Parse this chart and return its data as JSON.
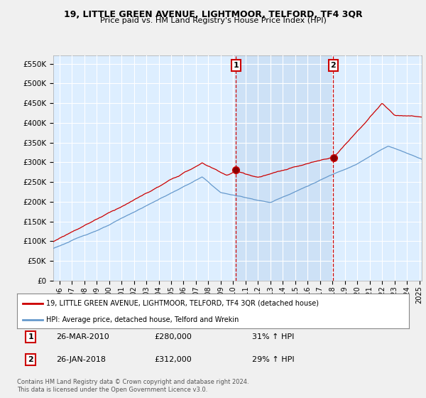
{
  "title": "19, LITTLE GREEN AVENUE, LIGHTMOOR, TELFORD, TF4 3QR",
  "subtitle": "Price paid vs. HM Land Registry's House Price Index (HPI)",
  "ylim": [
    0,
    570000
  ],
  "ytick_labels": [
    "£0",
    "£50K",
    "£100K",
    "£150K",
    "£200K",
    "£250K",
    "£300K",
    "£350K",
    "£400K",
    "£450K",
    "£500K",
    "£550K"
  ],
  "ytick_values": [
    0,
    50000,
    100000,
    150000,
    200000,
    250000,
    300000,
    350000,
    400000,
    450000,
    500000,
    550000
  ],
  "sale1_date": "26-MAR-2010",
  "sale1_price": 280000,
  "sale1_hpi": "31% ↑ HPI",
  "sale1_x": 2010.23,
  "sale2_date": "26-JAN-2018",
  "sale2_price": 312000,
  "sale2_hpi": "29% ↑ HPI",
  "sale2_x": 2018.07,
  "legend_line1": "19, LITTLE GREEN AVENUE, LIGHTMOOR, TELFORD, TF4 3QR (detached house)",
  "legend_line2": "HPI: Average price, detached house, Telford and Wrekin",
  "footer": "Contains HM Land Registry data © Crown copyright and database right 2024.\nThis data is licensed under the Open Government Licence v3.0.",
  "red_color": "#cc0000",
  "blue_color": "#6699cc",
  "bg_color": "#ddeeff",
  "shade_color": "#cce0f5",
  "grid_color": "#ffffff",
  "fig_bg": "#f0f0f0",
  "sale_vline_color": "#cc0000",
  "xlim_start": 1995.5,
  "xlim_end": 2025.2
}
